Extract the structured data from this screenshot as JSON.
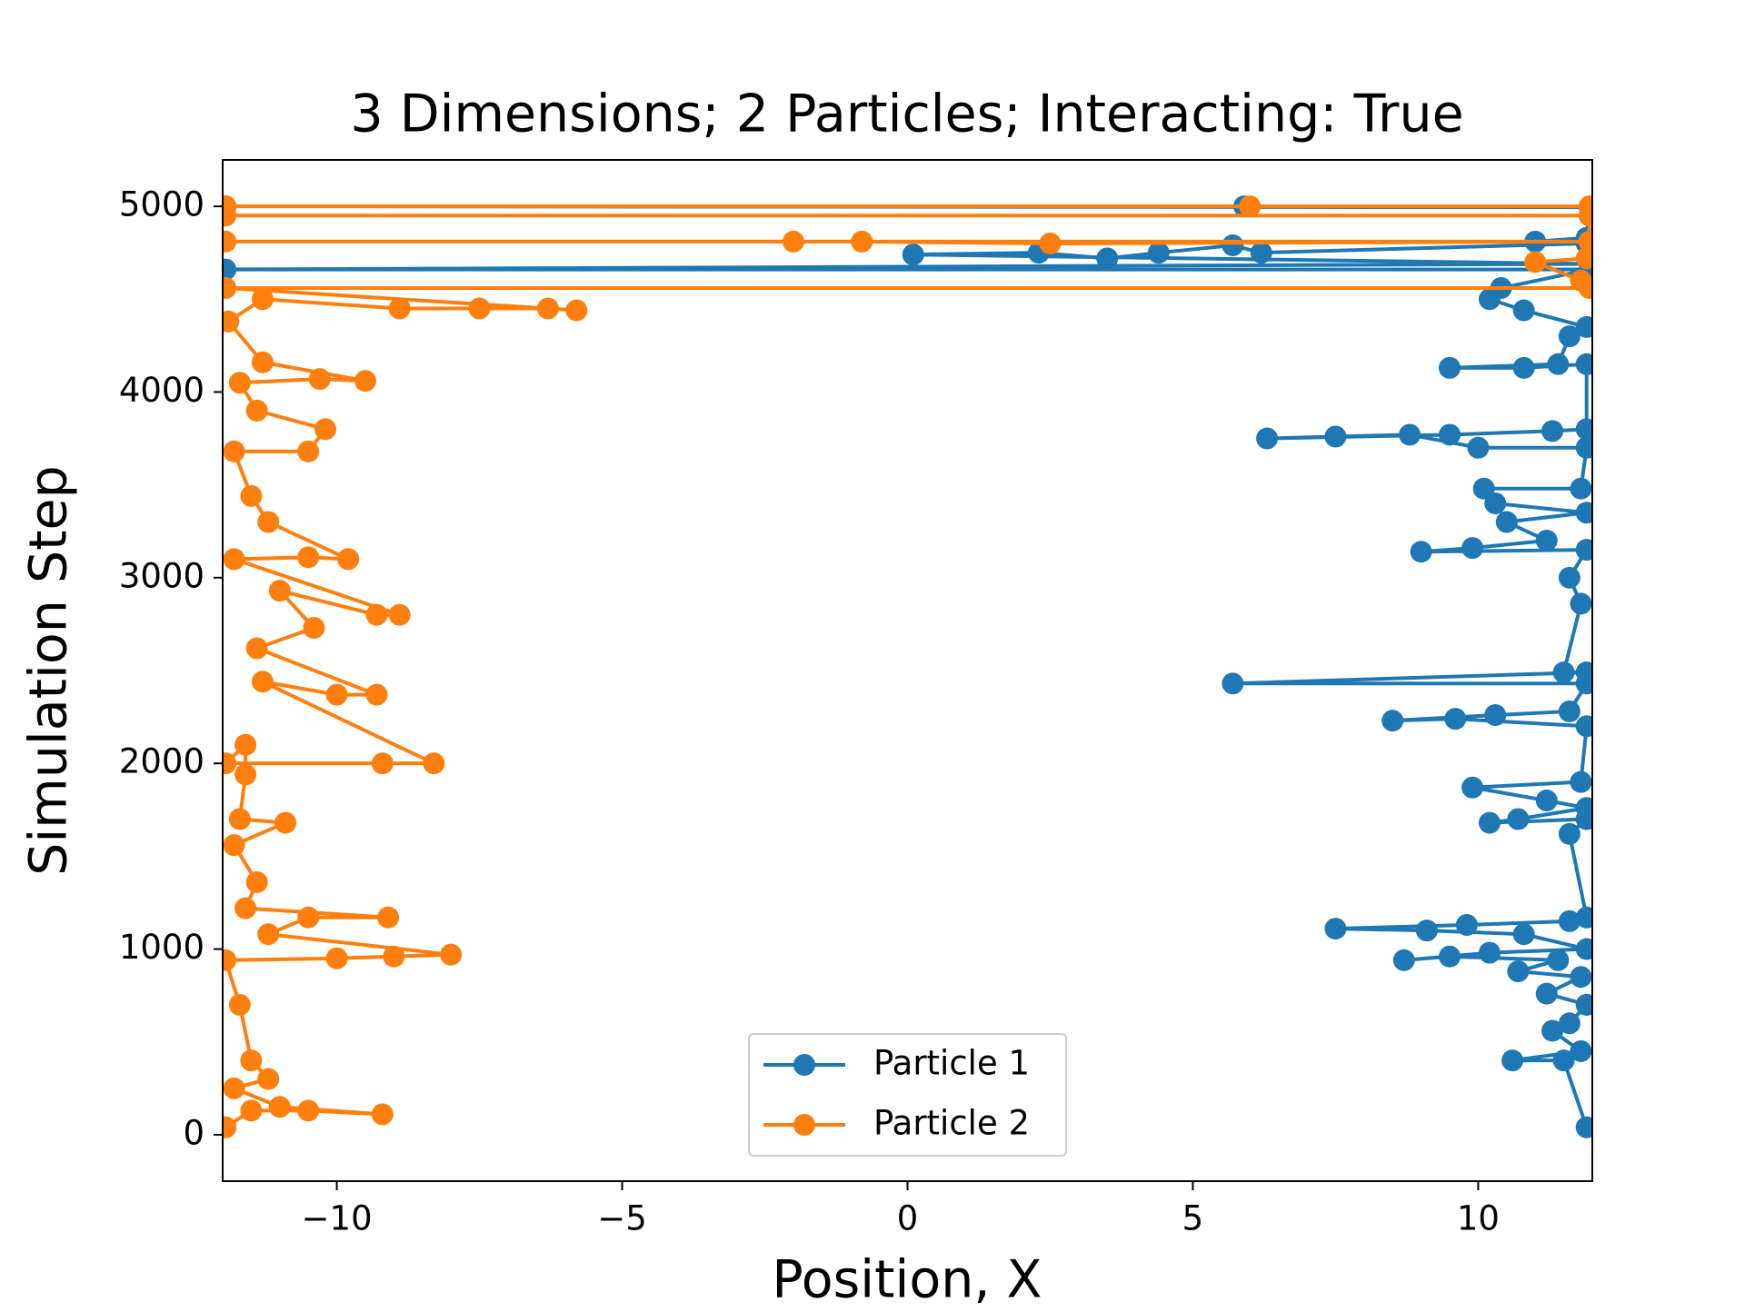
{
  "chart_data": {
    "type": "line",
    "title": "3 Dimensions; 2 Particles; Interacting: True",
    "xlabel": "Position, X",
    "ylabel": "Simulation Step",
    "xlim": [
      -12,
      12
    ],
    "ylim": [
      -250,
      5250
    ],
    "xticks": [
      {
        "value": -10,
        "label": "−10"
      },
      {
        "value": -5,
        "label": "−5"
      },
      0,
      5,
      10
    ],
    "yticks": [
      0,
      1000,
      2000,
      3000,
      4000,
      5000
    ],
    "legend": "lower center",
    "series": [
      {
        "name": "Particle 1",
        "color": "#1f77b4",
        "x": [
          11.9,
          11.5,
          10.6,
          11.8,
          11.3,
          11.6,
          11.9,
          11.2,
          11.8,
          10.7,
          11.4,
          9.5,
          8.7,
          10.2,
          11.9,
          10.8,
          9.1,
          7.5,
          9.8,
          11.6,
          11.9,
          11.6,
          11.9,
          10.2,
          10.7,
          11.9,
          11.2,
          9.9,
          11.8,
          11.9,
          9.6,
          8.5,
          10.3,
          11.6,
          11.9,
          5.7,
          11.9,
          11.5,
          11.8,
          11.6,
          11.9,
          9.0,
          9.9,
          11.2,
          10.5,
          11.9,
          10.3,
          10.1,
          11.8,
          11.9,
          10.0,
          8.8,
          7.5,
          6.3,
          9.5,
          11.3,
          11.9,
          11.9,
          10.8,
          9.5,
          11.4,
          11.6,
          11.9,
          10.8,
          10.2,
          10.4,
          11.95,
          -11.95,
          11.95,
          0.1,
          2.3,
          3.5,
          4.4,
          5.7,
          6.2,
          11.9,
          11.0,
          11.9,
          11.95,
          -11.95,
          5.9
        ],
        "values": [
          40,
          400,
          400,
          450,
          560,
          600,
          700,
          760,
          850,
          880,
          940,
          960,
          940,
          980,
          1000,
          1080,
          1100,
          1110,
          1130,
          1150,
          1170,
          1620,
          1700,
          1680,
          1700,
          1760,
          1800,
          1870,
          1900,
          2200,
          2240,
          2230,
          2260,
          2280,
          2430,
          2430,
          2490,
          2490,
          2860,
          3000,
          3150,
          3140,
          3160,
          3200,
          3300,
          3350,
          3400,
          3480,
          3480,
          3700,
          3700,
          3770,
          3760,
          3750,
          3770,
          3790,
          3800,
          4150,
          4130,
          4130,
          4150,
          4300,
          4350,
          4440,
          4500,
          4560,
          4660,
          4660,
          4690,
          4740,
          4750,
          4720,
          4750,
          4790,
          4750,
          4800,
          4810,
          4830,
          4995,
          5000,
          5000
        ]
      },
      {
        "name": "Particle 2",
        "color": "#ff7f0e",
        "x": [
          -11.95,
          -11.5,
          -10.5,
          -9.2,
          -11.0,
          -11.8,
          -11.2,
          -11.5,
          -11.7,
          -11.95,
          -10.0,
          -9.0,
          -8.0,
          -11.2,
          -10.5,
          -9.1,
          -11.6,
          -11.4,
          -11.8,
          -10.9,
          -11.7,
          -11.6,
          -11.6,
          -11.95,
          -9.2,
          -8.3,
          -11.3,
          -10.0,
          -9.3,
          -11.4,
          -10.4,
          -11.0,
          -9.3,
          -8.9,
          -11.8,
          -10.5,
          -9.8,
          -11.2,
          -11.5,
          -11.8,
          -10.5,
          -10.2,
          -11.4,
          -11.7,
          -10.3,
          -9.5,
          -11.3,
          -11.9,
          -11.3,
          -8.9,
          -7.5,
          -6.3,
          -5.8,
          -11.95,
          11.95,
          11.8,
          11.0,
          11.9,
          11.95,
          -11.95,
          -2.0,
          -0.8,
          2.5,
          11.95,
          11.95,
          -11.95,
          -11.95,
          6.0,
          11.95
        ],
        "values": [
          40,
          130,
          130,
          110,
          150,
          250,
          300,
          400,
          700,
          940,
          950,
          960,
          970,
          1080,
          1170,
          1170,
          1220,
          1360,
          1560,
          1680,
          1700,
          1940,
          2100,
          2000,
          2000,
          2000,
          2440,
          2370,
          2370,
          2620,
          2730,
          2930,
          2800,
          2800,
          3100,
          3110,
          3100,
          3300,
          3440,
          3680,
          3680,
          3800,
          3900,
          4050,
          4070,
          4060,
          4160,
          4380,
          4500,
          4450,
          4450,
          4450,
          4440,
          4560,
          4560,
          4600,
          4700,
          4720,
          4810,
          4810,
          4810,
          4810,
          4800,
          4810,
          4950,
          4950,
          5000,
          5000,
          5000
        ]
      }
    ]
  }
}
